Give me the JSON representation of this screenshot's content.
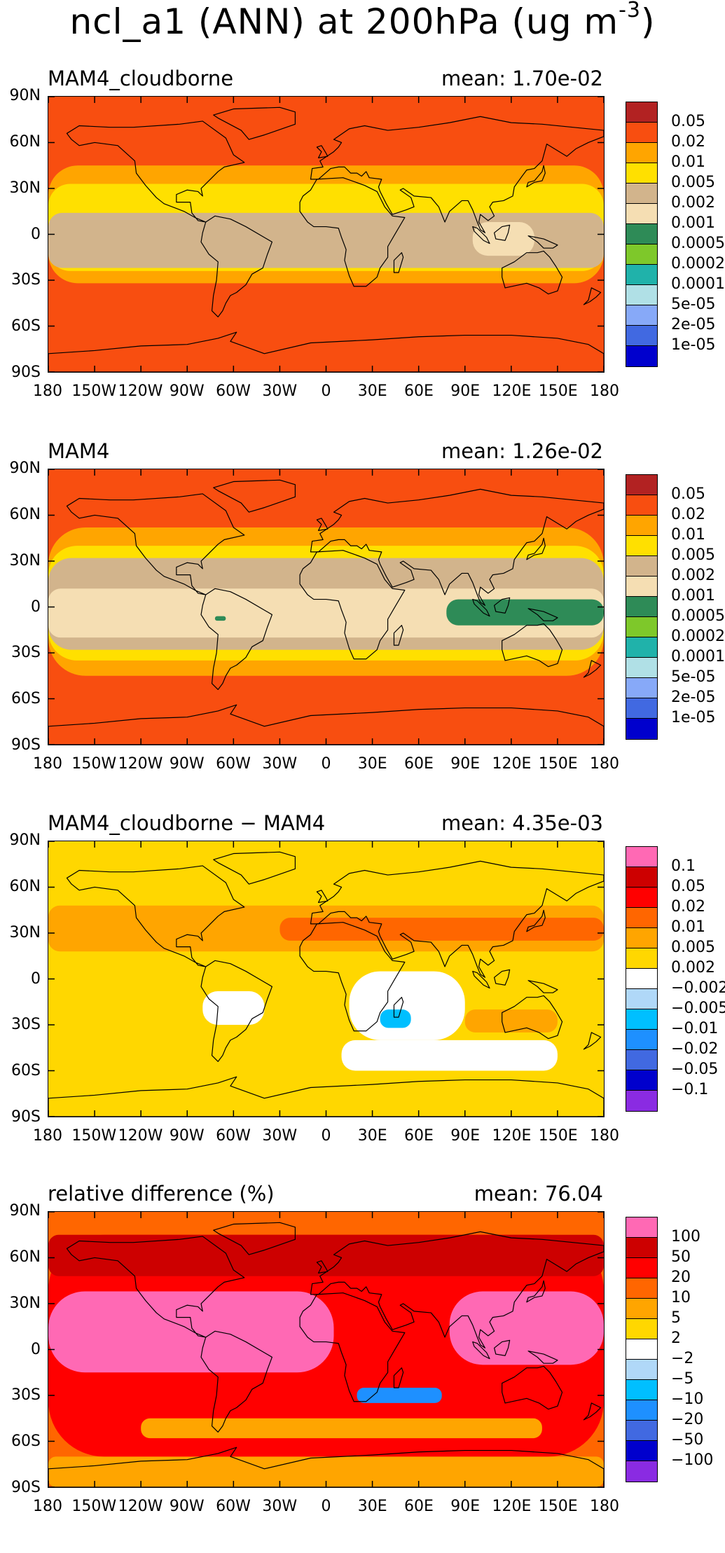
{
  "figure": {
    "title": "ncl_a1 (ANN) at 200hPa (ug m",
    "title_sup": "-3",
    "title_close": ")"
  },
  "lat_ticks": [
    "90N",
    "60N",
    "30N",
    "0",
    "30S",
    "60S",
    "90S"
  ],
  "lon_ticks": [
    "180",
    "150W",
    "120W",
    "90W",
    "60W",
    "30W",
    "0",
    "30E",
    "60E",
    "90E",
    "120E",
    "150E",
    "180"
  ],
  "panels": [
    {
      "title": "MAM4_cloudborne",
      "mean": "mean: 1.70e-02",
      "palette": "conc",
      "colorbar": {
        "labels": [
          "0.05",
          "0.02",
          "0.01",
          "0.005",
          "0.002",
          "0.001",
          "0.0005",
          "0.0002",
          "0.0001",
          "5e-05",
          "2e-05",
          "1e-05"
        ],
        "colors": [
          "#b22222",
          "#f84e10",
          "#ffa500",
          "#ffe000",
          "#d2b48c",
          "#f5deb3",
          "#2e8b57",
          "#7ec82a",
          "#20b2aa",
          "#b0e0e6",
          "#87a9f8",
          "#4169e1",
          "#0000cd"
        ]
      },
      "field": {
        "base": "#f84e10",
        "bands": [
          {
            "lat": [
              -32,
              45
            ],
            "color": "#ffa500"
          },
          {
            "lat": [
              -24,
              33
            ],
            "color": "#ffe000"
          },
          {
            "lat": [
              -22,
              14
            ],
            "color": "#d2b48c"
          },
          {
            "lat": [
              -14,
              8
            ],
            "lon": [
              95,
              135
            ],
            "color": "#f5deb3"
          }
        ]
      }
    },
    {
      "title": "MAM4",
      "mean": "mean: 1.26e-02",
      "palette": "conc",
      "colorbar": {
        "labels": [
          "0.05",
          "0.02",
          "0.01",
          "0.005",
          "0.002",
          "0.001",
          "0.0005",
          "0.0002",
          "0.0001",
          "5e-05",
          "2e-05",
          "1e-05"
        ],
        "colors": [
          "#b22222",
          "#f84e10",
          "#ffa500",
          "#ffe000",
          "#d2b48c",
          "#f5deb3",
          "#2e8b57",
          "#7ec82a",
          "#20b2aa",
          "#b0e0e6",
          "#87a9f8",
          "#4169e1",
          "#0000cd"
        ]
      },
      "field": {
        "base": "#f84e10",
        "bands": [
          {
            "lat": [
              -45,
              52
            ],
            "color": "#ffa500"
          },
          {
            "lat": [
              -35,
              40
            ],
            "color": "#ffe000"
          },
          {
            "lat": [
              -28,
              32
            ],
            "color": "#d2b48c"
          },
          {
            "lat": [
              -20,
              12
            ],
            "color": "#f5deb3"
          },
          {
            "lat": [
              -12,
              5
            ],
            "lon": [
              78,
              180
            ],
            "color": "#2e8b57"
          },
          {
            "lat": [
              -9,
              -6
            ],
            "lon": [
              -72,
              -65
            ],
            "color": "#2e8b57"
          }
        ]
      }
    },
    {
      "title": "MAM4_cloudborne − MAM4",
      "mean": "mean: 4.35e-03",
      "palette": "diff",
      "colorbar": {
        "labels": [
          "0.1",
          "0.05",
          "0.02",
          "0.01",
          "0.005",
          "0.002",
          "−0.002",
          "−0.005",
          "−0.01",
          "−0.02",
          "−0.05",
          "−0.1"
        ],
        "colors": [
          "#ff69b4",
          "#cd0000",
          "#ff0000",
          "#ff6600",
          "#ffa500",
          "#ffd700",
          "#ffffff",
          "#b0d8f8",
          "#00bfff",
          "#1e90ff",
          "#4169e1",
          "#0000cd",
          "#8a2be2"
        ]
      },
      "field": {
        "base": "#ffd700",
        "bands": [
          {
            "lat": [
              18,
              48
            ],
            "color": "#ffa500"
          },
          {
            "lat": [
              25,
              40
            ],
            "lon": [
              -30,
              180
            ],
            "color": "#ff6600"
          },
          {
            "lat": [
              -60,
              -40
            ],
            "lon": [
              10,
              150
            ],
            "color": "#ffffff"
          },
          {
            "lat": [
              -40,
              5
            ],
            "lon": [
              15,
              90
            ],
            "color": "#ffffff"
          },
          {
            "lat": [
              -30,
              -8
            ],
            "lon": [
              -80,
              -40
            ],
            "color": "#ffffff"
          },
          {
            "lat": [
              -35,
              -20
            ],
            "lon": [
              90,
              150
            ],
            "color": "#ffa500"
          },
          {
            "lat": [
              -32,
              -20
            ],
            "lon": [
              35,
              55
            ],
            "color": "#00bfff"
          }
        ]
      }
    },
    {
      "title": "relative difference (%)",
      "mean": "mean: 76.04",
      "palette": "rel",
      "colorbar": {
        "labels": [
          "100",
          "50",
          "20",
          "10",
          "5",
          "2",
          "−2",
          "−5",
          "−10",
          "−20",
          "−50",
          "−100"
        ],
        "colors": [
          "#ff69b4",
          "#cd0000",
          "#ff0000",
          "#ff6600",
          "#ffa500",
          "#ffd700",
          "#ffffff",
          "#b0d8f8",
          "#00bfff",
          "#1e90ff",
          "#4169e1",
          "#0000cd",
          "#8a2be2"
        ]
      },
      "field": {
        "base": "#ff6600",
        "bands": [
          {
            "lat": [
              -90,
              -70
            ],
            "color": "#ffa500"
          },
          {
            "lat": [
              -70,
              75
            ],
            "color": "#ff0000"
          },
          {
            "lat": [
              48,
              75
            ],
            "color": "#cd0000"
          },
          {
            "lat": [
              -15,
              38
            ],
            "lon": [
              -180,
              5
            ],
            "color": "#ff69b4"
          },
          {
            "lat": [
              -10,
              38
            ],
            "lon": [
              80,
              180
            ],
            "color": "#ff69b4"
          },
          {
            "lat": [
              -58,
              -45
            ],
            "lon": [
              -120,
              140
            ],
            "color": "#ffa500"
          },
          {
            "lat": [
              -35,
              -25
            ],
            "lon": [
              20,
              75
            ],
            "color": "#1e90ff"
          }
        ]
      }
    }
  ]
}
